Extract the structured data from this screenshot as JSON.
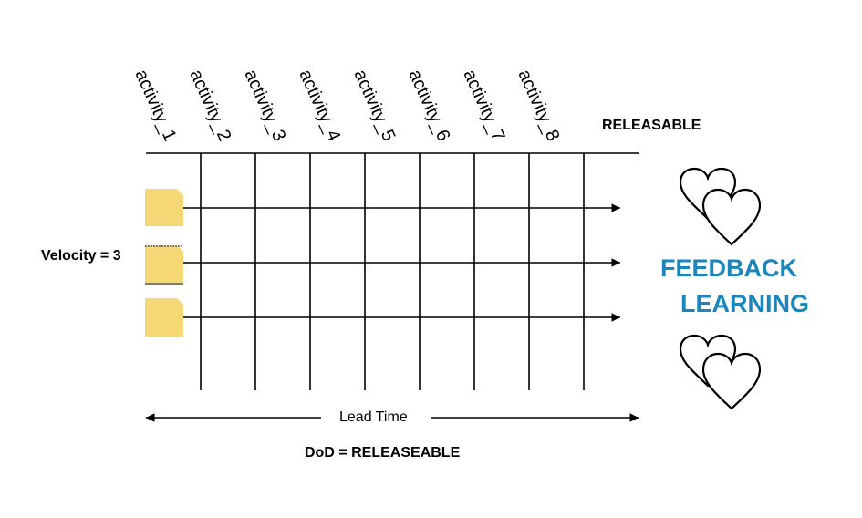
{
  "activities": [
    "activity_1",
    "activity_2",
    "activity_3",
    "activity_4",
    "activity_5",
    "activity_6",
    "activity_7",
    "activity_8"
  ],
  "releasable_label": "RELEASABLE",
  "velocity_label": "Velocity = 3",
  "lead_time_label": "Lead Time",
  "dod_label": "DoD = RELEASEABLE",
  "feedback_label": "FEEDBACK",
  "learning_label": "LEARNING",
  "colors": {
    "ticket": "#f5d776",
    "feedback_text": "#1a86bd",
    "lines": "#000000"
  },
  "icons": {
    "ticket": "document-icon",
    "hearts": "hearts-icon"
  }
}
